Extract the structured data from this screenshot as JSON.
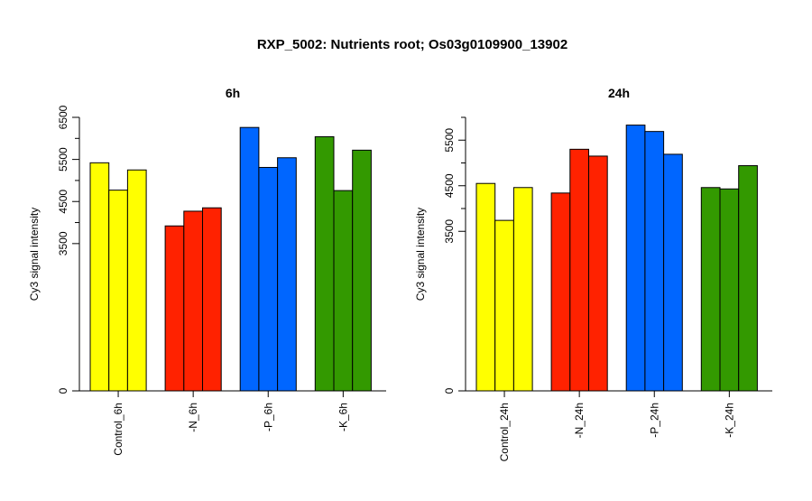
{
  "page_title": "RXP_5002: Nutrients root; Os03g0109900_13902",
  "colors": {
    "control": "#FFFF00",
    "minus_n": "#FF2200",
    "minus_p": "#0066FF",
    "minus_k": "#339900"
  },
  "chart_data": [
    {
      "type": "bar",
      "title": "6h",
      "ylabel": "Cy3 signal intensity",
      "xlabel": "",
      "categories": [
        "Control_6h",
        "-N_6h",
        "-P_6h",
        "-K_6h"
      ],
      "category_colors": [
        "#FFFF00",
        "#FF2200",
        "#0066FF",
        "#339900"
      ],
      "values": [
        [
          5420,
          4770,
          5250
        ],
        [
          3920,
          4270,
          4350
        ],
        [
          6260,
          5310,
          5540
        ],
        [
          6040,
          4760,
          5720
        ]
      ],
      "yticks": [
        0,
        3500,
        4500,
        5500,
        6500
      ],
      "ytick_labels": [
        "0",
        "3500",
        "4500",
        "5500",
        "6500"
      ],
      "ylim": [
        0,
        6500
      ],
      "grid": false,
      "legend": "none"
    },
    {
      "type": "bar",
      "title": "24h",
      "ylabel": "Cy3 signal intensity",
      "xlabel": "",
      "categories": [
        "Control_24h",
        "-N_24h",
        "-P_24h",
        "-K_24h"
      ],
      "category_colors": [
        "#FFFF00",
        "#FF2200",
        "#0066FF",
        "#339900"
      ],
      "values": [
        [
          4550,
          3740,
          4460
        ],
        [
          4340,
          5300,
          5150
        ],
        [
          5830,
          5690,
          5190
        ],
        [
          4460,
          4430,
          4940
        ]
      ],
      "yticks": [
        0,
        3500,
        4500,
        5500
      ],
      "ytick_labels": [
        "0",
        "3500",
        "4500",
        "5500"
      ],
      "ylim": [
        0,
        6000
      ],
      "grid": false,
      "legend": "none"
    }
  ]
}
